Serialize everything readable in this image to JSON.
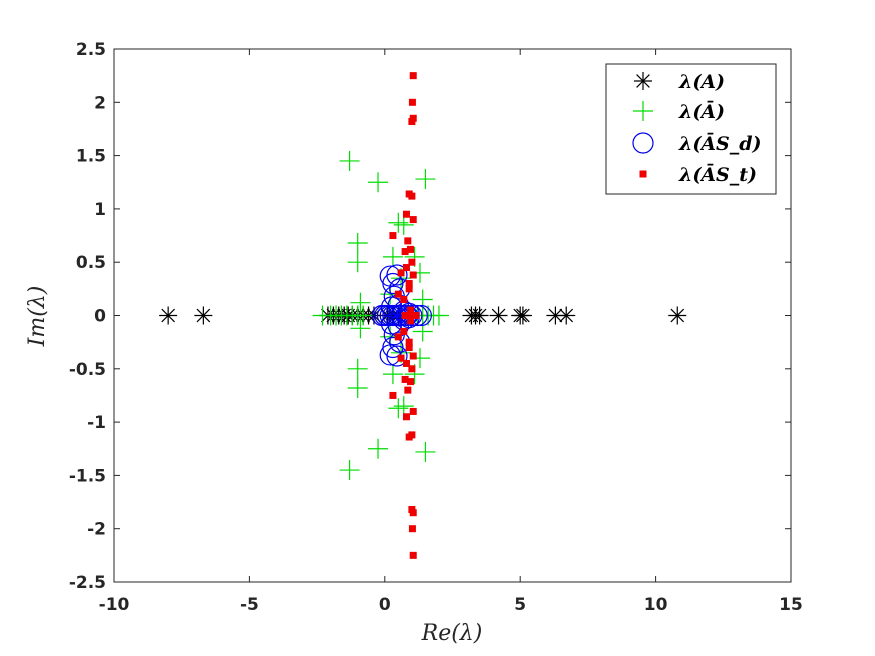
{
  "chart_data": {
    "type": "scatter",
    "title": "",
    "xlabel": "Re(λ)",
    "ylabel": "Im(λ)",
    "xlim": [
      -10,
      15
    ],
    "ylim": [
      -2.5,
      2.5
    ],
    "xticks": [
      "-10",
      "-5",
      "0",
      "5",
      "10",
      "15"
    ],
    "yticks": [
      "2.5",
      "2",
      "1.5",
      "1",
      "0.5",
      "0",
      "-0.5",
      "-1",
      "-1.5",
      "-2",
      "-2.5"
    ],
    "legend_position": "top-right",
    "series": [
      {
        "name": "λ(A)",
        "marker": "asterisk",
        "color": "#000000",
        "points": [
          [
            -8.0,
            0
          ],
          [
            -6.7,
            0
          ],
          [
            -2.1,
            0
          ],
          [
            -1.9,
            0
          ],
          [
            -1.7,
            0
          ],
          [
            -1.5,
            0
          ],
          [
            -1.35,
            0
          ],
          [
            -1.2,
            0
          ],
          [
            -1.0,
            0
          ],
          [
            -0.8,
            0
          ],
          [
            -0.6,
            0
          ],
          [
            -0.4,
            0
          ],
          [
            0.1,
            0
          ],
          [
            0.3,
            0
          ],
          [
            0.5,
            0
          ],
          [
            3.2,
            0
          ],
          [
            3.35,
            0
          ],
          [
            3.5,
            0
          ],
          [
            4.2,
            0
          ],
          [
            5.0,
            0
          ],
          [
            5.1,
            0
          ],
          [
            6.3,
            0
          ],
          [
            6.7,
            0
          ],
          [
            10.8,
            0
          ]
        ]
      },
      {
        "name": "λ(Ā)",
        "marker": "plus",
        "color": "#00dd00",
        "points": [
          [
            -2.3,
            0
          ],
          [
            -2.0,
            0
          ],
          [
            -1.8,
            0
          ],
          [
            -1.6,
            0
          ],
          [
            -1.4,
            0
          ],
          [
            -1.2,
            0
          ],
          [
            -1.0,
            0
          ],
          [
            -0.8,
            0
          ],
          [
            1.2,
            0
          ],
          [
            1.4,
            0
          ],
          [
            1.6,
            0
          ],
          [
            1.8,
            0
          ],
          [
            2.0,
            0
          ],
          [
            -1.3,
            1.45
          ],
          [
            -1.3,
            -1.45
          ],
          [
            -0.25,
            1.25
          ],
          [
            -0.25,
            -1.25
          ],
          [
            1.5,
            1.28
          ],
          [
            1.5,
            -1.28
          ],
          [
            -1.0,
            0.68
          ],
          [
            -1.0,
            -0.68
          ],
          [
            -1.0,
            0.5
          ],
          [
            -1.0,
            -0.5
          ],
          [
            0.5,
            0.87
          ],
          [
            0.5,
            -0.87
          ],
          [
            0.7,
            0.85
          ],
          [
            0.7,
            -0.85
          ],
          [
            0.3,
            0.55
          ],
          [
            0.3,
            -0.55
          ],
          [
            1.3,
            0.4
          ],
          [
            1.3,
            -0.4
          ],
          [
            -0.9,
            0.12
          ],
          [
            -0.9,
            -0.12
          ],
          [
            0.2,
            0.2
          ],
          [
            0.2,
            -0.2
          ],
          [
            1.4,
            0.15
          ],
          [
            1.4,
            -0.15
          ],
          [
            0.6,
            0.35
          ],
          [
            0.6,
            -0.35
          ],
          [
            1.1,
            0.55
          ],
          [
            1.1,
            -0.55
          ]
        ]
      },
      {
        "name": "λ(ĀS_d)",
        "marker": "circle",
        "color": "#0000ee",
        "points": [
          [
            0.2,
            0.37
          ],
          [
            0.2,
            -0.37
          ],
          [
            0.3,
            0.3
          ],
          [
            0.3,
            -0.3
          ],
          [
            0.45,
            0.38
          ],
          [
            0.45,
            -0.38
          ],
          [
            0.55,
            0.25
          ],
          [
            0.55,
            -0.25
          ],
          [
            0.35,
            0.18
          ],
          [
            0.35,
            -0.18
          ],
          [
            0.25,
            0.08
          ],
          [
            0.25,
            -0.08
          ],
          [
            0.5,
            0.1
          ],
          [
            0.5,
            -0.1
          ],
          [
            0.7,
            0.04
          ],
          [
            0.7,
            -0.04
          ],
          [
            -0.1,
            0.0
          ],
          [
            0.0,
            0.0
          ],
          [
            0.1,
            0.0
          ],
          [
            0.2,
            0.0
          ],
          [
            0.3,
            0.0
          ],
          [
            0.4,
            0.0
          ],
          [
            0.5,
            0.0
          ],
          [
            0.6,
            0.0
          ],
          [
            0.8,
            0.0
          ],
          [
            1.0,
            0.0
          ],
          [
            1.2,
            0.0
          ],
          [
            1.35,
            0.0
          ],
          [
            0.9,
            0.02
          ],
          [
            0.9,
            -0.02
          ]
        ]
      },
      {
        "name": "λ(ĀS_t)",
        "marker": "square",
        "color": "#ee0000",
        "points": [
          [
            1.05,
            2.25
          ],
          [
            1.05,
            -2.25
          ],
          [
            1.02,
            2.0
          ],
          [
            1.02,
            -2.0
          ],
          [
            1.05,
            1.85
          ],
          [
            1.05,
            -1.85
          ],
          [
            1.0,
            1.82
          ],
          [
            1.0,
            -1.82
          ],
          [
            0.9,
            1.14
          ],
          [
            0.9,
            -1.14
          ],
          [
            1.0,
            1.12
          ],
          [
            1.0,
            -1.12
          ],
          [
            0.3,
            0.75
          ],
          [
            0.3,
            -0.75
          ],
          [
            0.75,
            0.6
          ],
          [
            0.75,
            -0.6
          ],
          [
            0.85,
            0.7
          ],
          [
            0.85,
            -0.7
          ],
          [
            1.05,
            0.9
          ],
          [
            1.05,
            -0.9
          ],
          [
            0.6,
            0.4
          ],
          [
            0.6,
            -0.4
          ],
          [
            0.8,
            0.45
          ],
          [
            0.8,
            -0.45
          ],
          [
            0.5,
            0.2
          ],
          [
            0.5,
            -0.2
          ],
          [
            0.7,
            0.15
          ],
          [
            0.7,
            -0.15
          ],
          [
            0.9,
            0.3
          ],
          [
            0.9,
            -0.3
          ],
          [
            1.0,
            0.5
          ],
          [
            1.0,
            -0.5
          ],
          [
            0.95,
            0.05
          ],
          [
            0.95,
            -0.05
          ],
          [
            0.85,
            0.0
          ],
          [
            1.0,
            0.0
          ],
          [
            1.15,
            0.0
          ],
          [
            0.75,
            0.0
          ],
          [
            0.95,
            0.62
          ],
          [
            0.95,
            -0.62
          ],
          [
            1.05,
            0.38
          ],
          [
            1.05,
            -0.38
          ],
          [
            0.8,
            0.95
          ],
          [
            0.8,
            -0.95
          ],
          [
            0.9,
            0.25
          ],
          [
            0.9,
            -0.25
          ]
        ]
      }
    ]
  }
}
